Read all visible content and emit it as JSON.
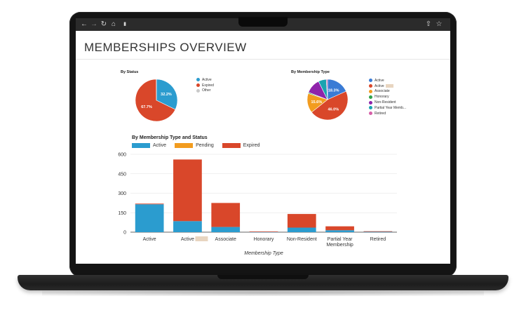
{
  "page": {
    "title": "MEMBERSHIPS OVERVIEW"
  },
  "browser": {
    "back_icon": "arrow-left-icon",
    "forward_icon": "arrow-right-icon",
    "reload_icon": "reload-icon",
    "home_icon": "home-icon",
    "lock_icon": "lock-icon",
    "share_icon": "share-icon",
    "bookmark_icon": "star-icon"
  },
  "colors": {
    "active": "#2b9ccf",
    "expired": "#d9472a",
    "pending": "#f29c1f",
    "other": "#c9c9c9",
    "associate": "#f29c1f",
    "honorary": "#2ea34a",
    "non_resident": "#8e24aa",
    "partial_year": "#1aa3b0",
    "retired": "#d65fa8",
    "type_active": "#3a7bd5"
  },
  "status_pie": {
    "title": "By Status",
    "legend": [
      "Active",
      "Expired",
      "Other"
    ],
    "slices": [
      {
        "label": "32.2%",
        "value": 32.2
      },
      {
        "label": "67.7%",
        "value": 67.7
      },
      {
        "label": "",
        "value": 0.1
      }
    ]
  },
  "type_pie": {
    "title": "By Membership Type",
    "legend": [
      "Active",
      "Active",
      "Associate",
      "Honorary",
      "Non-Resident",
      "Partial Year Memb...",
      "Retired"
    ],
    "slices": [
      {
        "label": "18.3%",
        "value": 18.3
      },
      {
        "label": "46.0%",
        "value": 46.0
      },
      {
        "label": "15.6%",
        "value": 15.6
      },
      {
        "label": "",
        "value": 0.9
      },
      {
        "label": "",
        "value": 11.9
      },
      {
        "label": "",
        "value": 6.3
      },
      {
        "label": "",
        "value": 1.0
      }
    ]
  },
  "chart_data": {
    "type": "bar",
    "title": "By Membership Type and Status",
    "categories": [
      "Active",
      "Active",
      "Associate",
      "Honorary",
      "Non-Resident",
      "Partial Year Membership",
      "Retired"
    ],
    "category_lines": [
      [
        "Active"
      ],
      [
        "Active"
      ],
      [
        "Associate"
      ],
      [
        "Honorary"
      ],
      [
        "Non-Resident"
      ],
      [
        "Partial Year",
        "Membership"
      ],
      [
        "Retired"
      ]
    ],
    "stacked": true,
    "series": [
      {
        "name": "Active",
        "values": [
          215,
          85,
          40,
          2,
          35,
          15,
          3
        ]
      },
      {
        "name": "Pending",
        "values": [
          0,
          0,
          0,
          0,
          0,
          0,
          0
        ]
      },
      {
        "name": "Expired",
        "values": [
          5,
          475,
          185,
          3,
          105,
          30,
          4
        ]
      }
    ],
    "xlabel": "Membership Type",
    "ylabel": "",
    "ylim": [
      0,
      600
    ],
    "yticks": [
      0,
      150,
      300,
      450,
      600
    ],
    "grid": true,
    "legend_position": "top-left"
  }
}
